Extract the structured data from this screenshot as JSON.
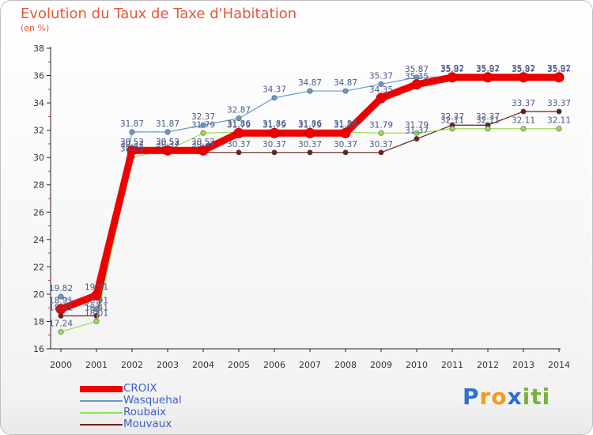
{
  "chart_data": {
    "type": "line",
    "title": "Evolution du Taux de Taxe d'Habitation",
    "subtitle": "(en %)",
    "xlabel": "",
    "ylabel": "",
    "x": [
      "2000",
      "2001",
      "2002",
      "2003",
      "2004",
      "2005",
      "2006",
      "2007",
      "2008",
      "2009",
      "2010",
      "2011",
      "2012",
      "2013",
      "2014"
    ],
    "ylim": [
      16,
      38
    ],
    "yticks": [
      "16",
      "18",
      "20",
      "22",
      "24",
      "26",
      "28",
      "30",
      "32",
      "34",
      "36",
      "38"
    ],
    "grid": false,
    "legend_position": "bottom-left",
    "series": [
      {
        "name": "CROIX",
        "color": "#ee0000",
        "values": [
          18.91,
          19.91,
          30.52,
          30.52,
          30.52,
          31.79,
          31.79,
          31.79,
          31.79,
          34.35,
          35.35,
          35.87,
          35.87,
          35.87,
          35.87
        ],
        "labels": [
          "18.91",
          "19.91",
          "30.52",
          "30.52",
          "30.52",
          "31.79",
          "31.79",
          "31.79",
          "31.79",
          "34.35",
          "35.35",
          "35.87",
          "35.87",
          "35.87",
          "35.87"
        ]
      },
      {
        "name": "Wasquehal",
        "color": "#6699cc",
        "values": [
          19.82,
          18.91,
          31.87,
          31.87,
          32.37,
          32.87,
          34.37,
          34.87,
          34.87,
          35.37,
          35.87,
          35.92,
          35.92,
          35.92,
          35.92
        ],
        "labels": [
          "19.82",
          "18.91",
          "31.87",
          "31.87",
          "32.37",
          "32.87",
          "34.37",
          "34.87",
          "34.87",
          "35.37",
          "35.87",
          "35.92",
          "35.92",
          "35.92",
          "35.92"
        ]
      },
      {
        "name": "Roubaix",
        "color": "#99dd55",
        "values": [
          17.24,
          18.01,
          30.03,
          30.53,
          31.79,
          31.86,
          31.86,
          31.86,
          31.86,
          31.79,
          31.79,
          32.11,
          32.11,
          32.11,
          32.11
        ],
        "labels": [
          "17.24",
          "18.01",
          "30.03",
          "30.53",
          "31.79",
          "31.86",
          "31.86",
          "31.86",
          "31.86",
          "31.79",
          "31.79",
          "32.11",
          "32.11",
          "32.11",
          "32.11"
        ]
      },
      {
        "name": "Mouvaux",
        "color": "#6b1f1f",
        "values": [
          18.41,
          18.41,
          30.37,
          30.37,
          30.37,
          30.37,
          30.37,
          30.37,
          30.37,
          30.37,
          31.37,
          32.37,
          32.37,
          33.37,
          33.37
        ],
        "labels": [
          "18.41",
          "18.41",
          "30.37",
          "30.37",
          "30.37",
          "30.37",
          "30.37",
          "30.37",
          "30.37",
          "30.37",
          "31.37",
          "32.37",
          "32.37",
          "33.37",
          "33.37"
        ]
      }
    ]
  },
  "logo": {
    "letters": [
      "P",
      "r",
      "o",
      "x",
      "i",
      "t",
      "i"
    ],
    "colors": [
      "#2f6fd1",
      "#f39a1c",
      "#f39a1c",
      "#2f6fd1",
      "#7ab03c",
      "#7ab03c",
      "#7ab03c"
    ]
  }
}
